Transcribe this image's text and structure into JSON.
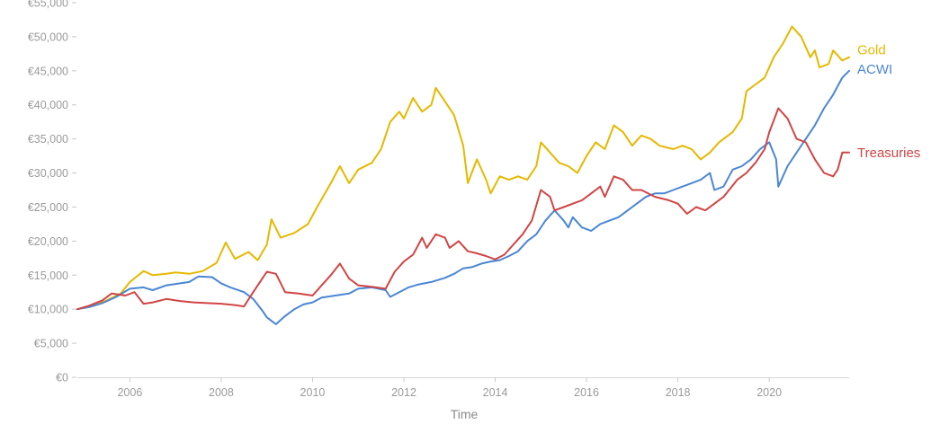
{
  "chart_data": {
    "type": "line",
    "title": "",
    "xlabel": "Time",
    "ylabel": "",
    "xlim": [
      2004.85,
      2021.75
    ],
    "ylim": [
      0,
      55000
    ],
    "grid": false,
    "legend": "inline-right",
    "x_ticks": [
      {
        "value": 2006,
        "label": "2006"
      },
      {
        "value": 2008,
        "label": "2008"
      },
      {
        "value": 2010,
        "label": "2010"
      },
      {
        "value": 2012,
        "label": "2012"
      },
      {
        "value": 2014,
        "label": "2014"
      },
      {
        "value": 2016,
        "label": "2016"
      },
      {
        "value": 2018,
        "label": "2018"
      },
      {
        "value": 2020,
        "label": "2020"
      }
    ],
    "y_ticks": [
      {
        "value": 0,
        "label": "€0"
      },
      {
        "value": 5000,
        "label": "€5,000"
      },
      {
        "value": 10000,
        "label": "€10,000"
      },
      {
        "value": 15000,
        "label": "€15,000"
      },
      {
        "value": 20000,
        "label": "€20,000"
      },
      {
        "value": 25000,
        "label": "€25,000"
      },
      {
        "value": 30000,
        "label": "€30,000"
      },
      {
        "value": 35000,
        "label": "€35,000"
      },
      {
        "value": 40000,
        "label": "€40,000"
      },
      {
        "value": 45000,
        "label": "€45,000"
      },
      {
        "value": 50000,
        "label": "€50,000"
      },
      {
        "value": 55000,
        "label": "€55,000"
      }
    ],
    "series": [
      {
        "name": "Gold",
        "color": "#e6b800",
        "points": [
          [
            2004.85,
            10000
          ],
          [
            2005.2,
            10500
          ],
          [
            2005.5,
            11300
          ],
          [
            2005.8,
            12300
          ],
          [
            2006.0,
            14000
          ],
          [
            2006.3,
            15600
          ],
          [
            2006.5,
            15000
          ],
          [
            2006.8,
            15200
          ],
          [
            2007.0,
            15400
          ],
          [
            2007.3,
            15200
          ],
          [
            2007.6,
            15600
          ],
          [
            2007.9,
            16800
          ],
          [
            2008.1,
            19800
          ],
          [
            2008.3,
            17400
          ],
          [
            2008.6,
            18400
          ],
          [
            2008.8,
            17200
          ],
          [
            2009.0,
            19500
          ],
          [
            2009.1,
            23200
          ],
          [
            2009.3,
            20500
          ],
          [
            2009.6,
            21200
          ],
          [
            2009.9,
            22500
          ],
          [
            2010.1,
            25000
          ],
          [
            2010.4,
            28500
          ],
          [
            2010.6,
            31000
          ],
          [
            2010.8,
            28500
          ],
          [
            2011.0,
            30500
          ],
          [
            2011.3,
            31500
          ],
          [
            2011.5,
            33500
          ],
          [
            2011.7,
            37500
          ],
          [
            2011.9,
            39000
          ],
          [
            2012.0,
            38000
          ],
          [
            2012.2,
            41000
          ],
          [
            2012.4,
            39000
          ],
          [
            2012.6,
            40000
          ],
          [
            2012.7,
            42500
          ],
          [
            2012.9,
            40500
          ],
          [
            2013.1,
            38500
          ],
          [
            2013.3,
            34000
          ],
          [
            2013.4,
            28500
          ],
          [
            2013.6,
            32000
          ],
          [
            2013.8,
            29000
          ],
          [
            2013.9,
            27000
          ],
          [
            2014.1,
            29500
          ],
          [
            2014.3,
            29000
          ],
          [
            2014.5,
            29500
          ],
          [
            2014.7,
            29000
          ],
          [
            2014.9,
            31000
          ],
          [
            2015.0,
            34500
          ],
          [
            2015.2,
            33000
          ],
          [
            2015.4,
            31500
          ],
          [
            2015.6,
            31000
          ],
          [
            2015.8,
            30000
          ],
          [
            2016.0,
            32500
          ],
          [
            2016.2,
            34500
          ],
          [
            2016.4,
            33500
          ],
          [
            2016.6,
            37000
          ],
          [
            2016.8,
            36000
          ],
          [
            2017.0,
            34000
          ],
          [
            2017.2,
            35500
          ],
          [
            2017.4,
            35000
          ],
          [
            2017.6,
            34000
          ],
          [
            2017.9,
            33500
          ],
          [
            2018.1,
            34000
          ],
          [
            2018.3,
            33500
          ],
          [
            2018.5,
            32000
          ],
          [
            2018.7,
            33000
          ],
          [
            2018.9,
            34500
          ],
          [
            2019.2,
            36000
          ],
          [
            2019.4,
            38000
          ],
          [
            2019.5,
            42000
          ],
          [
            2019.7,
            43000
          ],
          [
            2019.9,
            44000
          ],
          [
            2020.1,
            47000
          ],
          [
            2020.3,
            49000
          ],
          [
            2020.5,
            51500
          ],
          [
            2020.7,
            50000
          ],
          [
            2020.9,
            47000
          ],
          [
            2021.0,
            48000
          ],
          [
            2021.1,
            45500
          ],
          [
            2021.3,
            46000
          ],
          [
            2021.4,
            48000
          ],
          [
            2021.6,
            46500
          ],
          [
            2021.75,
            47000
          ]
        ]
      },
      {
        "name": "ACWI",
        "color": "#4a86d4",
        "points": [
          [
            2004.85,
            10000
          ],
          [
            2005.1,
            10300
          ],
          [
            2005.4,
            10900
          ],
          [
            2005.7,
            11800
          ],
          [
            2006.0,
            13000
          ],
          [
            2006.3,
            13200
          ],
          [
            2006.5,
            12800
          ],
          [
            2006.8,
            13500
          ],
          [
            2007.0,
            13700
          ],
          [
            2007.3,
            14000
          ],
          [
            2007.5,
            14800
          ],
          [
            2007.8,
            14700
          ],
          [
            2008.0,
            13800
          ],
          [
            2008.2,
            13200
          ],
          [
            2008.5,
            12500
          ],
          [
            2008.7,
            11500
          ],
          [
            2008.9,
            9800
          ],
          [
            2009.0,
            8800
          ],
          [
            2009.2,
            7800
          ],
          [
            2009.4,
            9000
          ],
          [
            2009.6,
            10000
          ],
          [
            2009.8,
            10700
          ],
          [
            2010.0,
            11000
          ],
          [
            2010.2,
            11700
          ],
          [
            2010.5,
            12000
          ],
          [
            2010.8,
            12300
          ],
          [
            2011.0,
            13000
          ],
          [
            2011.3,
            13200
          ],
          [
            2011.6,
            12800
          ],
          [
            2011.7,
            11800
          ],
          [
            2011.9,
            12500
          ],
          [
            2012.1,
            13200
          ],
          [
            2012.3,
            13600
          ],
          [
            2012.6,
            14000
          ],
          [
            2012.9,
            14600
          ],
          [
            2013.1,
            15200
          ],
          [
            2013.3,
            16000
          ],
          [
            2013.5,
            16200
          ],
          [
            2013.7,
            16700
          ],
          [
            2013.9,
            17000
          ],
          [
            2014.1,
            17200
          ],
          [
            2014.3,
            17800
          ],
          [
            2014.5,
            18500
          ],
          [
            2014.7,
            20000
          ],
          [
            2014.9,
            21000
          ],
          [
            2015.1,
            23000
          ],
          [
            2015.3,
            24500
          ],
          [
            2015.5,
            23000
          ],
          [
            2015.6,
            22000
          ],
          [
            2015.7,
            23500
          ],
          [
            2015.9,
            22000
          ],
          [
            2016.1,
            21500
          ],
          [
            2016.3,
            22500
          ],
          [
            2016.5,
            23000
          ],
          [
            2016.7,
            23500
          ],
          [
            2016.9,
            24500
          ],
          [
            2017.1,
            25500
          ],
          [
            2017.3,
            26500
          ],
          [
            2017.5,
            27000
          ],
          [
            2017.7,
            27000
          ],
          [
            2017.9,
            27500
          ],
          [
            2018.1,
            28000
          ],
          [
            2018.3,
            28500
          ],
          [
            2018.5,
            29000
          ],
          [
            2018.7,
            30000
          ],
          [
            2018.8,
            27500
          ],
          [
            2019.0,
            28000
          ],
          [
            2019.2,
            30500
          ],
          [
            2019.4,
            31000
          ],
          [
            2019.6,
            32000
          ],
          [
            2019.8,
            33500
          ],
          [
            2020.0,
            34500
          ],
          [
            2020.15,
            32000
          ],
          [
            2020.2,
            28000
          ],
          [
            2020.4,
            31000
          ],
          [
            2020.6,
            33000
          ],
          [
            2020.8,
            35000
          ],
          [
            2021.0,
            37000
          ],
          [
            2021.2,
            39500
          ],
          [
            2021.4,
            41500
          ],
          [
            2021.6,
            44000
          ],
          [
            2021.75,
            45000
          ]
        ]
      },
      {
        "name": "Treasuries",
        "color": "#d04545",
        "points": [
          [
            2004.85,
            10000
          ],
          [
            2005.1,
            10500
          ],
          [
            2005.4,
            11300
          ],
          [
            2005.6,
            12300
          ],
          [
            2005.9,
            12000
          ],
          [
            2006.1,
            12500
          ],
          [
            2006.3,
            10800
          ],
          [
            2006.5,
            11000
          ],
          [
            2006.8,
            11500
          ],
          [
            2007.1,
            11200
          ],
          [
            2007.4,
            11000
          ],
          [
            2007.7,
            10900
          ],
          [
            2008.0,
            10800
          ],
          [
            2008.3,
            10600
          ],
          [
            2008.5,
            10400
          ],
          [
            2008.7,
            12500
          ],
          [
            2008.9,
            14500
          ],
          [
            2009.0,
            15500
          ],
          [
            2009.2,
            15200
          ],
          [
            2009.4,
            12500
          ],
          [
            2009.7,
            12300
          ],
          [
            2010.0,
            12000
          ],
          [
            2010.2,
            13500
          ],
          [
            2010.4,
            15000
          ],
          [
            2010.6,
            16700
          ],
          [
            2010.8,
            14500
          ],
          [
            2011.0,
            13500
          ],
          [
            2011.3,
            13300
          ],
          [
            2011.6,
            13000
          ],
          [
            2011.8,
            15500
          ],
          [
            2012.0,
            17000
          ],
          [
            2012.2,
            18000
          ],
          [
            2012.4,
            20500
          ],
          [
            2012.5,
            19000
          ],
          [
            2012.7,
            21000
          ],
          [
            2012.9,
            20500
          ],
          [
            2013.0,
            19000
          ],
          [
            2013.2,
            20000
          ],
          [
            2013.4,
            18500
          ],
          [
            2013.6,
            18200
          ],
          [
            2013.8,
            17800
          ],
          [
            2014.0,
            17300
          ],
          [
            2014.2,
            18000
          ],
          [
            2014.4,
            19500
          ],
          [
            2014.6,
            21000
          ],
          [
            2014.8,
            23000
          ],
          [
            2015.0,
            27500
          ],
          [
            2015.2,
            26500
          ],
          [
            2015.3,
            24500
          ],
          [
            2015.5,
            25000
          ],
          [
            2015.7,
            25500
          ],
          [
            2015.9,
            26000
          ],
          [
            2016.1,
            27000
          ],
          [
            2016.3,
            28000
          ],
          [
            2016.4,
            26500
          ],
          [
            2016.6,
            29500
          ],
          [
            2016.8,
            29000
          ],
          [
            2017.0,
            27500
          ],
          [
            2017.2,
            27500
          ],
          [
            2017.5,
            26500
          ],
          [
            2017.8,
            26000
          ],
          [
            2018.0,
            25500
          ],
          [
            2018.2,
            24000
          ],
          [
            2018.4,
            25000
          ],
          [
            2018.6,
            24500
          ],
          [
            2018.8,
            25500
          ],
          [
            2019.0,
            26500
          ],
          [
            2019.3,
            29000
          ],
          [
            2019.5,
            30000
          ],
          [
            2019.7,
            31500
          ],
          [
            2019.9,
            33500
          ],
          [
            2020.0,
            36000
          ],
          [
            2020.2,
            39500
          ],
          [
            2020.4,
            38000
          ],
          [
            2020.6,
            35000
          ],
          [
            2020.8,
            34500
          ],
          [
            2021.0,
            32000
          ],
          [
            2021.2,
            30000
          ],
          [
            2021.4,
            29500
          ],
          [
            2021.5,
            30500
          ],
          [
            2021.6,
            33000
          ],
          [
            2021.75,
            33000
          ]
        ]
      }
    ]
  }
}
